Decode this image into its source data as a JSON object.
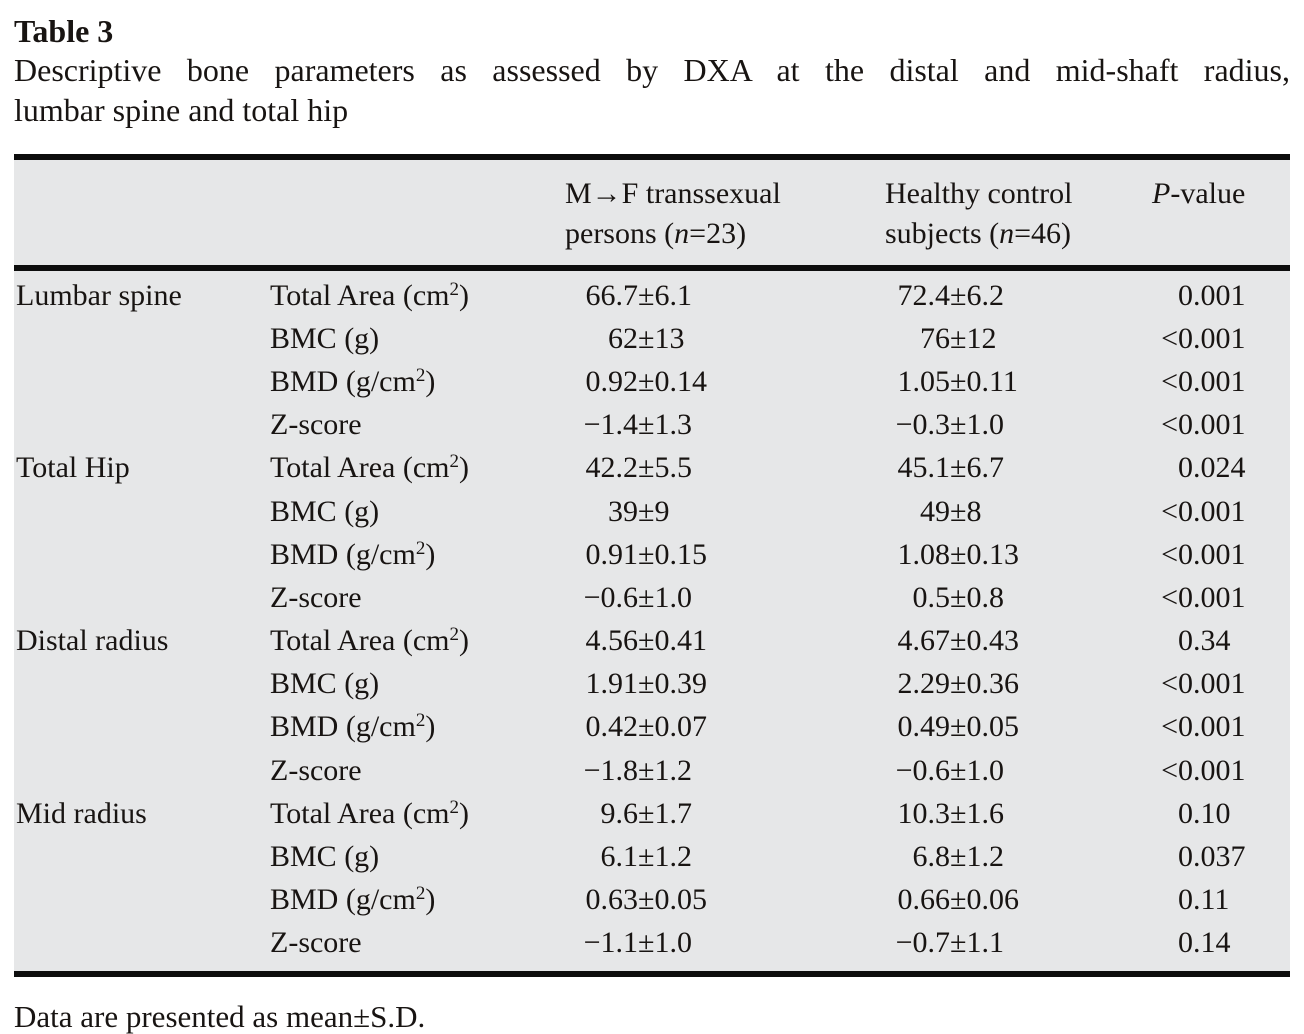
{
  "title": "Table 3",
  "caption_line1": "Descriptive bone parameters as assessed by DXA at the distal and mid-shaft radius,",
  "caption_line2": "lumbar spine and total hip",
  "footnote": "Data are presented as mean±S.D.",
  "colors": {
    "table_background": "#e6e7e8",
    "rule": "#0d0d0d",
    "text": "#181412"
  },
  "table": {
    "header": {
      "mf": {
        "line1": "M→F transsexual",
        "line2_pre": "persons (",
        "line2_n": "n",
        "line2_post": "=23)"
      },
      "hc": {
        "line1": "Healthy control",
        "line2_pre": "subjects (",
        "line2_n": "n",
        "line2_post": "=46)"
      },
      "pvalue": {
        "p": "P",
        "rest": "-value"
      }
    },
    "sections": [
      {
        "site": "Lumbar spine",
        "rows": [
          {
            "param": {
              "pre": "Total Area (cm",
              "sup": "2",
              "post": ")"
            },
            "mf": {
              "pre": "66.7",
              "post": "±6.1"
            },
            "hc": {
              "pre": "72.4",
              "post": "±6.2"
            },
            "p": {
              "pre": "",
              "val": "0.001"
            }
          },
          {
            "param": {
              "pre": "BMC (g)",
              "sup": "",
              "post": ""
            },
            "mf": {
              "pre": "62",
              "post": "±13"
            },
            "hc": {
              "pre": "76",
              "post": "±12"
            },
            "p": {
              "pre": "<",
              "val": "0.001"
            }
          },
          {
            "param": {
              "pre": "BMD (g/cm",
              "sup": "2",
              "post": ")"
            },
            "mf": {
              "pre": "0.92",
              "post": "±0.14"
            },
            "hc": {
              "pre": "1.05",
              "post": "±0.11"
            },
            "p": {
              "pre": "<",
              "val": "0.001"
            }
          },
          {
            "param": {
              "pre": "Z-score",
              "sup": "",
              "post": ""
            },
            "mf": {
              "pre": "−1.4",
              "post": "±1.3"
            },
            "hc": {
              "pre": "−0.3",
              "post": "±1.0"
            },
            "p": {
              "pre": "<",
              "val": "0.001"
            }
          }
        ]
      },
      {
        "site": "Total Hip",
        "rows": [
          {
            "param": {
              "pre": "Total Area (cm",
              "sup": "2",
              "post": ")"
            },
            "mf": {
              "pre": "42.2",
              "post": "±5.5"
            },
            "hc": {
              "pre": "45.1",
              "post": "±6.7"
            },
            "p": {
              "pre": "",
              "val": "0.024"
            }
          },
          {
            "param": {
              "pre": "BMC (g)",
              "sup": "",
              "post": ""
            },
            "mf": {
              "pre": "39",
              "post": "±9"
            },
            "hc": {
              "pre": "49",
              "post": "±8"
            },
            "p": {
              "pre": "<",
              "val": "0.001"
            }
          },
          {
            "param": {
              "pre": "BMD (g/cm",
              "sup": "2",
              "post": ")"
            },
            "mf": {
              "pre": "0.91",
              "post": "±0.15"
            },
            "hc": {
              "pre": "1.08",
              "post": "±0.13"
            },
            "p": {
              "pre": "<",
              "val": "0.001"
            }
          },
          {
            "param": {
              "pre": "Z-score",
              "sup": "",
              "post": ""
            },
            "mf": {
              "pre": "−0.6",
              "post": "±1.0"
            },
            "hc": {
              "pre": "0.5",
              "post": "±0.8"
            },
            "p": {
              "pre": "<",
              "val": "0.001"
            }
          }
        ]
      },
      {
        "site": "Distal radius",
        "rows": [
          {
            "param": {
              "pre": "Total Area (cm",
              "sup": "2",
              "post": ")"
            },
            "mf": {
              "pre": "4.56",
              "post": "±0.41"
            },
            "hc": {
              "pre": "4.67",
              "post": "±0.43"
            },
            "p": {
              "pre": "",
              "val": "0.34"
            }
          },
          {
            "param": {
              "pre": "BMC (g)",
              "sup": "",
              "post": ""
            },
            "mf": {
              "pre": "1.91",
              "post": "±0.39"
            },
            "hc": {
              "pre": "2.29",
              "post": "±0.36"
            },
            "p": {
              "pre": "<",
              "val": "0.001"
            }
          },
          {
            "param": {
              "pre": "BMD (g/cm",
              "sup": "2",
              "post": ")"
            },
            "mf": {
              "pre": "0.42",
              "post": "±0.07"
            },
            "hc": {
              "pre": "0.49",
              "post": "±0.05"
            },
            "p": {
              "pre": "<",
              "val": "0.001"
            }
          },
          {
            "param": {
              "pre": "Z-score",
              "sup": "",
              "post": ""
            },
            "mf": {
              "pre": "−1.8",
              "post": "±1.2"
            },
            "hc": {
              "pre": "−0.6",
              "post": "±1.0"
            },
            "p": {
              "pre": "<",
              "val": "0.001"
            }
          }
        ]
      },
      {
        "site": "Mid radius",
        "rows": [
          {
            "param": {
              "pre": "Total Area (cm",
              "sup": "2",
              "post": ")"
            },
            "mf": {
              "pre": "9.6",
              "post": "±1.7"
            },
            "hc": {
              "pre": "10.3",
              "post": "±1.6"
            },
            "p": {
              "pre": "",
              "val": "0.10"
            }
          },
          {
            "param": {
              "pre": "BMC (g)",
              "sup": "",
              "post": ""
            },
            "mf": {
              "pre": "6.1",
              "post": "±1.2"
            },
            "hc": {
              "pre": "6.8",
              "post": "±1.2"
            },
            "p": {
              "pre": "",
              "val": "0.037"
            }
          },
          {
            "param": {
              "pre": "BMD (g/cm",
              "sup": "2",
              "post": ")"
            },
            "mf": {
              "pre": "0.63",
              "post": "±0.05"
            },
            "hc": {
              "pre": "0.66",
              "post": "±0.06"
            },
            "p": {
              "pre": "",
              "val": "0.11"
            }
          },
          {
            "param": {
              "pre": "Z-score",
              "sup": "",
              "post": ""
            },
            "mf": {
              "pre": "−1.1",
              "post": "±1.0"
            },
            "hc": {
              "pre": "−0.7",
              "post": "±1.1"
            },
            "p": {
              "pre": "",
              "val": "0.14"
            }
          }
        ]
      }
    ]
  }
}
